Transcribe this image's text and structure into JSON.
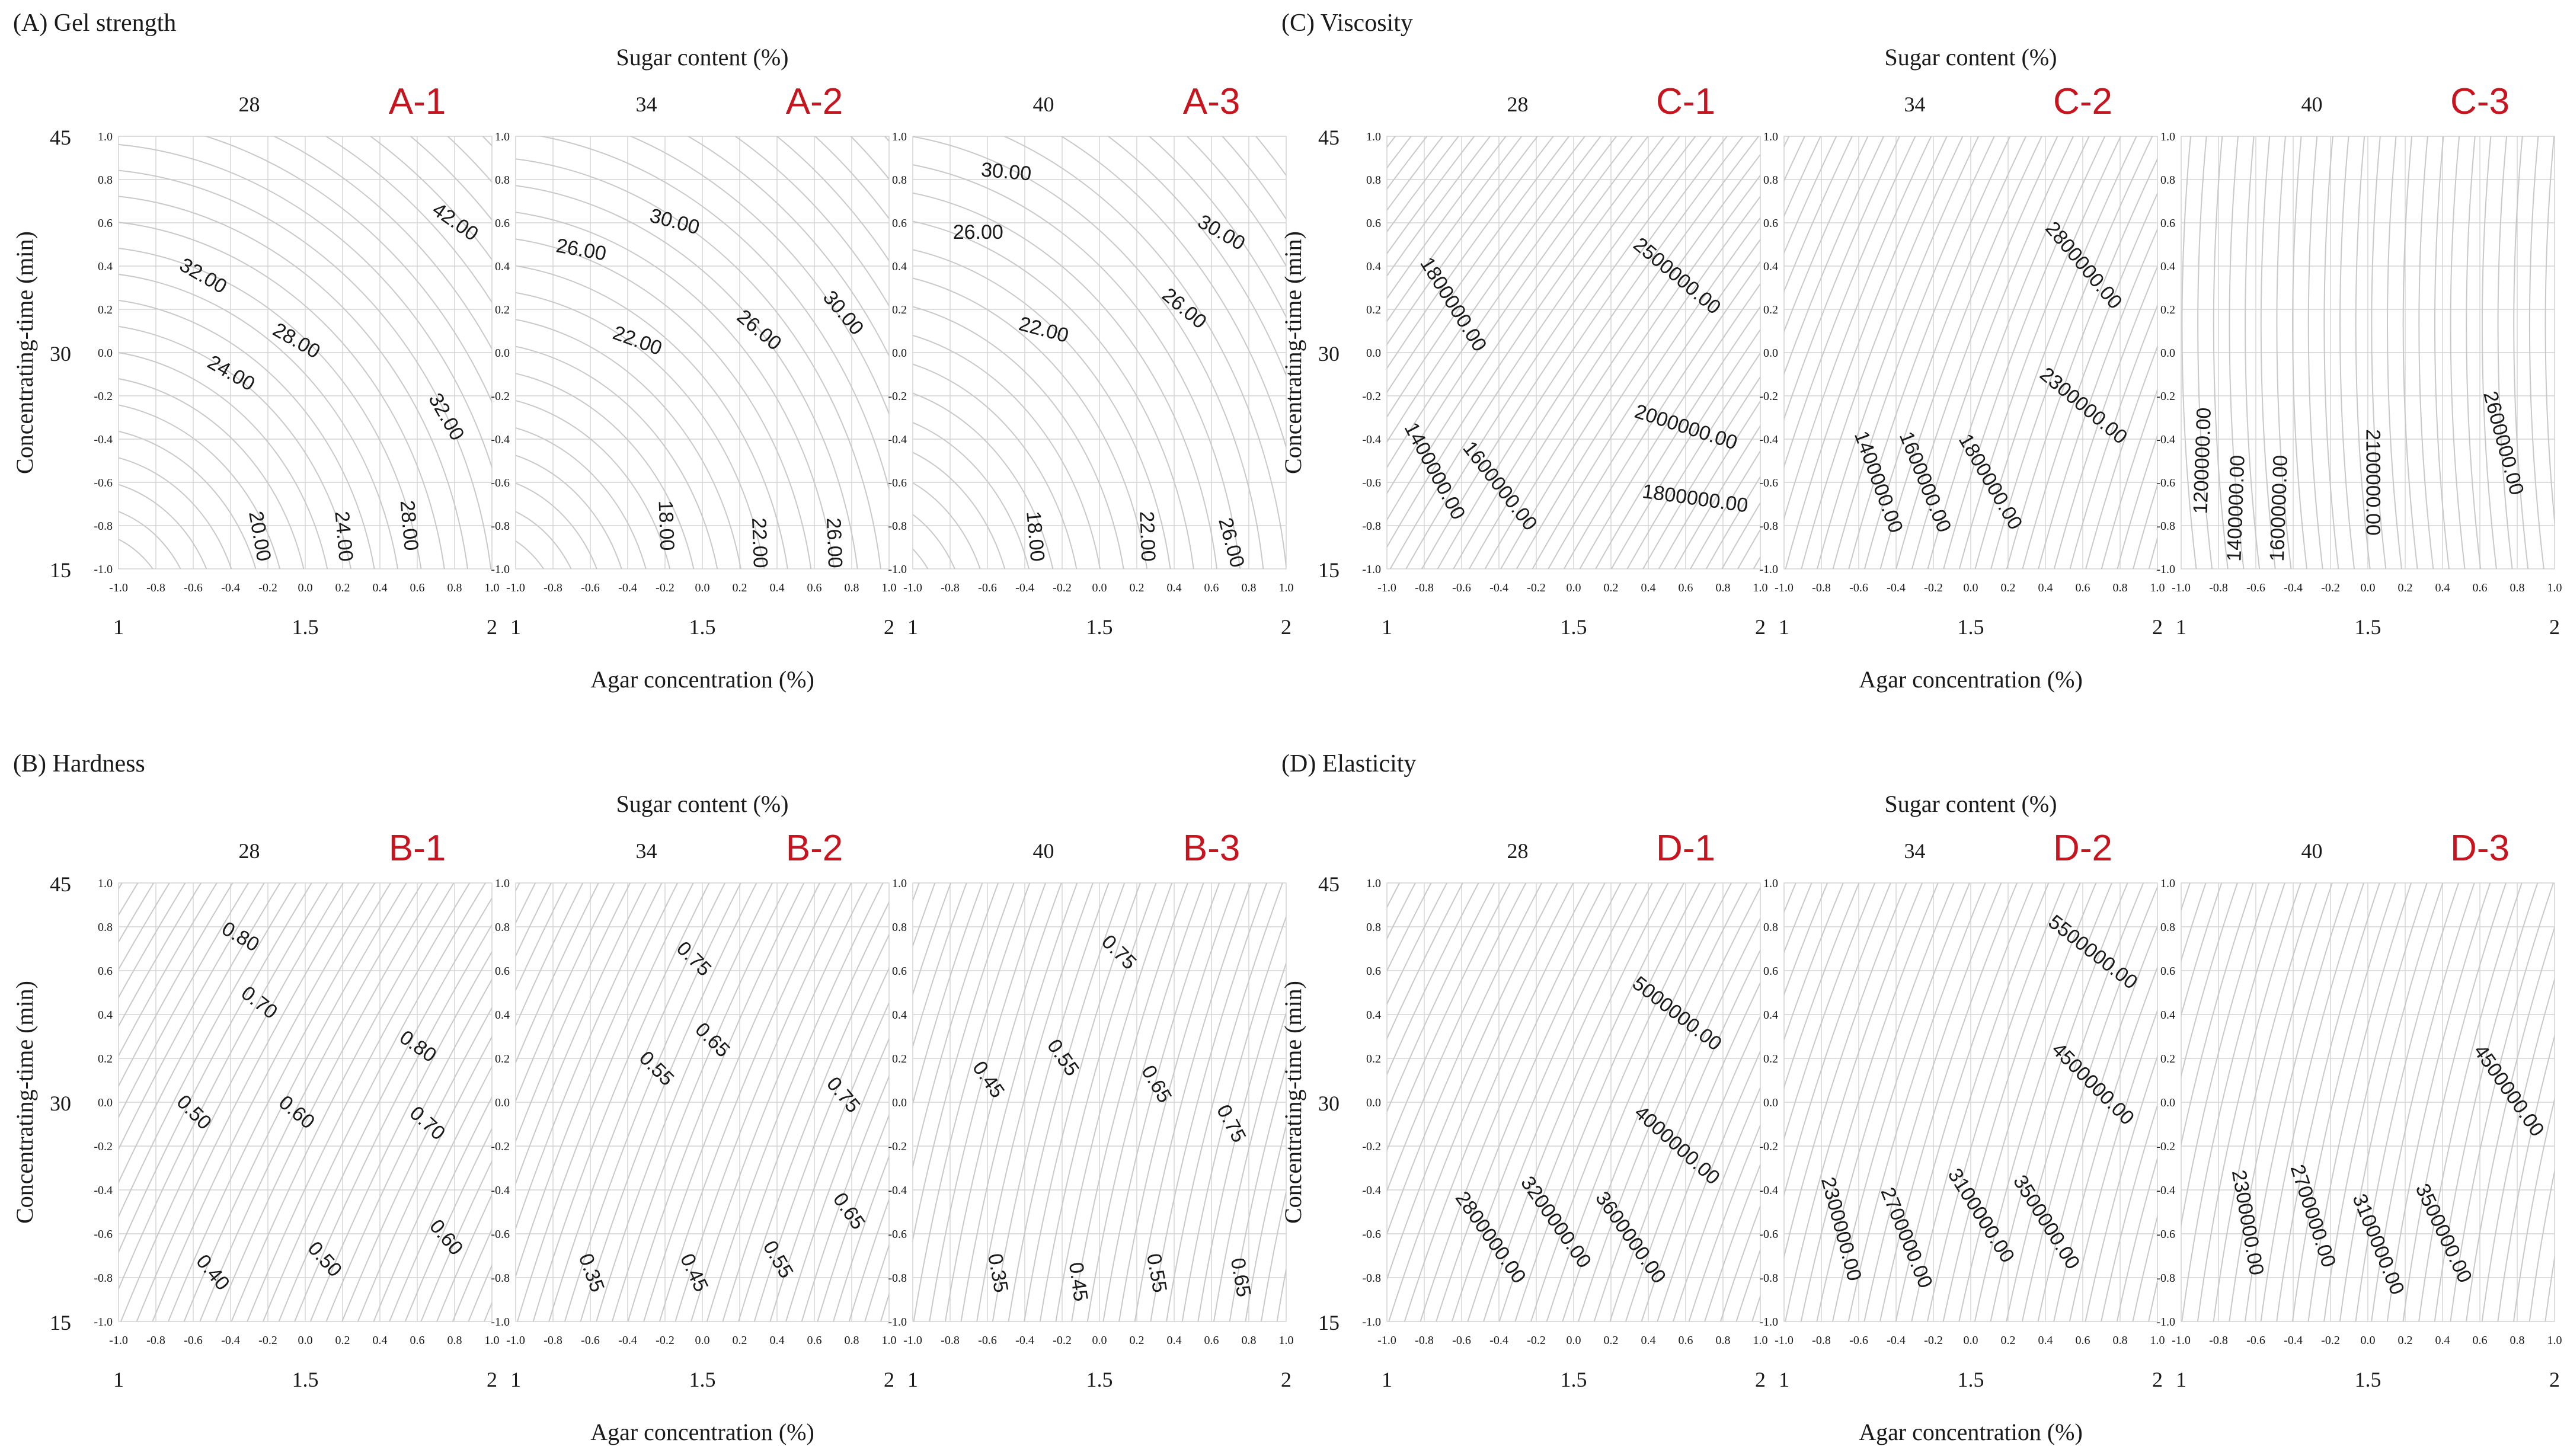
{
  "chart_data": {
    "type": "contour",
    "sections": [
      {
        "id": "A",
        "title": "(A) Gel strength",
        "super_xlabel": "Sugar content (%)",
        "xlabel": "Agar concentration (%)",
        "ylabel": "Concentrating-time (min)",
        "panels": [
          {
            "badge": "A-1",
            "sugar": "28",
            "angle": 0.25,
            "pattern": "arc",
            "labels": [
              {
                "text": "42.00",
                "x": 0.8,
                "y": 0.6,
                "rot": 35
              },
              {
                "text": "32.00",
                "x": -0.55,
                "y": 0.35,
                "rot": 30
              },
              {
                "text": "28.00",
                "x": -0.05,
                "y": 0.05,
                "rot": 30
              },
              {
                "text": "24.00",
                "x": -0.4,
                "y": -0.1,
                "rot": 30
              },
              {
                "text": "32.00",
                "x": 0.75,
                "y": -0.3,
                "rot": 60
              },
              {
                "text": "20.00",
                "x": -0.25,
                "y": -0.85,
                "rot": 80
              },
              {
                "text": "24.00",
                "x": 0.2,
                "y": -0.85,
                "rot": 85
              },
              {
                "text": "28.00",
                "x": 0.55,
                "y": -0.8,
                "rot": 85
              }
            ]
          },
          {
            "badge": "A-2",
            "sugar": "34",
            "angle": 0.35,
            "pattern": "arc",
            "labels": [
              {
                "text": "30.00",
                "x": -0.15,
                "y": 0.6,
                "rot": 15
              },
              {
                "text": "26.00",
                "x": -0.65,
                "y": 0.47,
                "rot": 10
              },
              {
                "text": "22.00",
                "x": -0.35,
                "y": 0.05,
                "rot": 20
              },
              {
                "text": "26.00",
                "x": 0.3,
                "y": 0.1,
                "rot": 40
              },
              {
                "text": "30.00",
                "x": 0.75,
                "y": 0.18,
                "rot": 50
              },
              {
                "text": "18.00",
                "x": -0.2,
                "y": -0.8,
                "rot": 88
              },
              {
                "text": "22.00",
                "x": 0.3,
                "y": -0.88,
                "rot": 88
              },
              {
                "text": "26.00",
                "x": 0.7,
                "y": -0.88,
                "rot": 88
              }
            ]
          },
          {
            "badge": "A-3",
            "sugar": "40",
            "angle": 0.55,
            "pattern": "arc",
            "labels": [
              {
                "text": "30.00",
                "x": -0.5,
                "y": 0.83,
                "rot": 5
              },
              {
                "text": "26.00",
                "x": -0.65,
                "y": 0.55,
                "rot": 0
              },
              {
                "text": "22.00",
                "x": -0.3,
                "y": 0.1,
                "rot": 15
              },
              {
                "text": "30.00",
                "x": 0.65,
                "y": 0.55,
                "rot": 30
              },
              {
                "text": "26.00",
                "x": 0.45,
                "y": 0.2,
                "rot": 40
              },
              {
                "text": "18.00",
                "x": -0.35,
                "y": -0.85,
                "rot": 85
              },
              {
                "text": "22.00",
                "x": 0.25,
                "y": -0.85,
                "rot": 88
              },
              {
                "text": "26.00",
                "x": 0.7,
                "y": -0.88,
                "rot": 75
              }
            ]
          }
        ]
      },
      {
        "id": "C",
        "title": "(C) Viscosity",
        "super_xlabel": "Sugar content (%)",
        "xlabel": "Agar concentration (%)",
        "ylabel": "Concentrating-time (min)",
        "panels": [
          {
            "badge": "C-1",
            "sugar": "28",
            "angle": 0.5,
            "pattern": "diag",
            "labels": [
              {
                "text": "2500000.00",
                "x": 0.55,
                "y": 0.35,
                "rot": 40
              },
              {
                "text": "1800000.00",
                "x": -0.65,
                "y": 0.22,
                "rot": 58
              },
              {
                "text": "2000000.00",
                "x": 0.6,
                "y": -0.35,
                "rot": 18
              },
              {
                "text": "1800000.00",
                "x": 0.65,
                "y": -0.68,
                "rot": 8
              },
              {
                "text": "1400000.00",
                "x": -0.75,
                "y": -0.55,
                "rot": 62
              },
              {
                "text": "1600000.00",
                "x": -0.4,
                "y": -0.62,
                "rot": 52
              }
            ]
          },
          {
            "badge": "C-2",
            "sugar": "34",
            "angle": 0.75,
            "pattern": "diag",
            "labels": [
              {
                "text": "2800000.00",
                "x": 0.6,
                "y": 0.4,
                "rot": 50
              },
              {
                "text": "2300000.00",
                "x": 0.6,
                "y": -0.25,
                "rot": 40
              },
              {
                "text": "1400000.00",
                "x": -0.5,
                "y": -0.6,
                "rot": 70
              },
              {
                "text": "1600000.00",
                "x": -0.25,
                "y": -0.6,
                "rot": 68
              },
              {
                "text": "1800000.00",
                "x": 0.1,
                "y": -0.6,
                "rot": 60
              }
            ]
          },
          {
            "badge": "C-3",
            "sugar": "40",
            "angle": 1.3,
            "pattern": "diag",
            "labels": [
              {
                "text": "1200000.00",
                "x": -0.88,
                "y": -0.5,
                "rot": -88
              },
              {
                "text": "1400000.00",
                "x": -0.7,
                "y": -0.72,
                "rot": -88
              },
              {
                "text": "1600000.00",
                "x": -0.47,
                "y": -0.72,
                "rot": -88
              },
              {
                "text": "2100000.00",
                "x": 0.02,
                "y": -0.6,
                "rot": 90
              },
              {
                "text": "2600000.00",
                "x": 0.72,
                "y": -0.42,
                "rot": 75
              }
            ]
          }
        ]
      },
      {
        "id": "B",
        "title": "(B) Hardness",
        "super_xlabel": "Sugar content (%)",
        "xlabel": "Agar concentration (%)",
        "ylabel": "Concentrating-time (min)",
        "panels": [
          {
            "badge": "B-1",
            "sugar": "28",
            "angle": 0.62,
            "pattern": "diag",
            "labels": [
              {
                "text": "0.80",
                "x": -0.35,
                "y": 0.75,
                "rot": 30
              },
              {
                "text": "0.70",
                "x": -0.25,
                "y": 0.45,
                "rot": 38
              },
              {
                "text": "0.80",
                "x": 0.6,
                "y": 0.25,
                "rot": 35
              },
              {
                "text": "0.60",
                "x": -0.05,
                "y": -0.05,
                "rot": 40
              },
              {
                "text": "0.50",
                "x": -0.6,
                "y": -0.05,
                "rot": 45
              },
              {
                "text": "0.70",
                "x": 0.65,
                "y": -0.1,
                "rot": 42
              },
              {
                "text": "0.60",
                "x": 0.75,
                "y": -0.62,
                "rot": 50
              },
              {
                "text": "0.50",
                "x": 0.1,
                "y": -0.72,
                "rot": 48
              },
              {
                "text": "0.40",
                "x": -0.5,
                "y": -0.78,
                "rot": 50
              }
            ]
          },
          {
            "badge": "B-2",
            "sugar": "34",
            "angle": 0.72,
            "pattern": "diag",
            "labels": [
              {
                "text": "0.75",
                "x": -0.05,
                "y": 0.65,
                "rot": 45
              },
              {
                "text": "0.65",
                "x": 0.05,
                "y": 0.28,
                "rot": 45
              },
              {
                "text": "0.55",
                "x": -0.25,
                "y": 0.15,
                "rot": 45
              },
              {
                "text": "0.75",
                "x": 0.75,
                "y": 0.03,
                "rot": 50
              },
              {
                "text": "0.65",
                "x": 0.78,
                "y": -0.5,
                "rot": 55
              },
              {
                "text": "0.55",
                "x": 0.4,
                "y": -0.72,
                "rot": 60
              },
              {
                "text": "0.45",
                "x": -0.05,
                "y": -0.78,
                "rot": 65
              },
              {
                "text": "0.35",
                "x": -0.6,
                "y": -0.78,
                "rot": 70
              }
            ]
          },
          {
            "badge": "B-3",
            "sugar": "40",
            "angle": 0.88,
            "pattern": "diag",
            "labels": [
              {
                "text": "0.75",
                "x": 0.1,
                "y": 0.68,
                "rot": 45
              },
              {
                "text": "0.55",
                "x": -0.2,
                "y": 0.2,
                "rot": 55
              },
              {
                "text": "0.45",
                "x": -0.6,
                "y": 0.1,
                "rot": 55
              },
              {
                "text": "0.65",
                "x": 0.3,
                "y": 0.08,
                "rot": 60
              },
              {
                "text": "0.75",
                "x": 0.7,
                "y": -0.1,
                "rot": 62
              },
              {
                "text": "0.35",
                "x": -0.55,
                "y": -0.78,
                "rot": 80
              },
              {
                "text": "0.45",
                "x": -0.12,
                "y": -0.82,
                "rot": 82
              },
              {
                "text": "0.55",
                "x": 0.3,
                "y": -0.78,
                "rot": 80
              },
              {
                "text": "0.65",
                "x": 0.75,
                "y": -0.8,
                "rot": 80
              }
            ]
          }
        ]
      },
      {
        "id": "D",
        "title": "(D) Elasticity",
        "super_xlabel": "Sugar content (%)",
        "xlabel": "Agar concentration (%)",
        "ylabel": "Concentrating-time (min)",
        "panels": [
          {
            "badge": "D-1",
            "sugar": "28",
            "angle": 0.7,
            "pattern": "diag",
            "labels": [
              {
                "text": "5000000.00",
                "x": 0.55,
                "y": 0.4,
                "rot": 38
              },
              {
                "text": "4000000.00",
                "x": 0.55,
                "y": -0.2,
                "rot": 42
              },
              {
                "text": "2800000.00",
                "x": -0.45,
                "y": -0.62,
                "rot": 55
              },
              {
                "text": "3200000.00",
                "x": -0.1,
                "y": -0.55,
                "rot": 55
              },
              {
                "text": "3600000.00",
                "x": 0.3,
                "y": -0.62,
                "rot": 55
              }
            ]
          },
          {
            "badge": "D-2",
            "sugar": "34",
            "angle": 0.82,
            "pattern": "diag",
            "labels": [
              {
                "text": "5500000.00",
                "x": 0.65,
                "y": 0.68,
                "rot": 38
              },
              {
                "text": "4500000.00",
                "x": 0.65,
                "y": 0.08,
                "rot": 45
              },
              {
                "text": "2300000.00",
                "x": -0.7,
                "y": -0.58,
                "rot": 75
              },
              {
                "text": "2700000.00",
                "x": -0.35,
                "y": -0.62,
                "rot": 68
              },
              {
                "text": "3100000.00",
                "x": 0.05,
                "y": -0.52,
                "rot": 58
              },
              {
                "text": "3500000.00",
                "x": 0.4,
                "y": -0.55,
                "rot": 58
              }
            ]
          },
          {
            "badge": "D-3",
            "sugar": "40",
            "angle": 0.92,
            "pattern": "diag",
            "labels": [
              {
                "text": "4500000.00",
                "x": 0.75,
                "y": 0.05,
                "rot": 55
              },
              {
                "text": "2300000.00",
                "x": -0.65,
                "y": -0.55,
                "rot": 80
              },
              {
                "text": "2700000.00",
                "x": -0.3,
                "y": -0.52,
                "rot": 72
              },
              {
                "text": "3100000.00",
                "x": 0.05,
                "y": -0.65,
                "rot": 68
              },
              {
                "text": "3500000.00",
                "x": 0.4,
                "y": -0.6,
                "rot": 65
              }
            ]
          }
        ]
      }
    ],
    "coded_x_ticks": [
      "-1.0",
      "-0.8",
      "-0.6",
      "-0.4",
      "-0.2",
      "0.0",
      "0.2",
      "0.4",
      "0.6",
      "0.8",
      "1.0"
    ],
    "coded_y_ticks": [
      "1.0",
      "0.8",
      "0.6",
      "0.4",
      "0.2",
      "0.0",
      "-0.2",
      "-0.4",
      "-0.6",
      "-0.8",
      "-1.0"
    ],
    "actual_x_ticks": [
      "1",
      "1.5",
      "2"
    ],
    "actual_y_ticks": [
      "45",
      "30",
      "15"
    ],
    "xlim": [
      -1,
      1
    ],
    "ylim": [
      -1,
      1
    ]
  }
}
